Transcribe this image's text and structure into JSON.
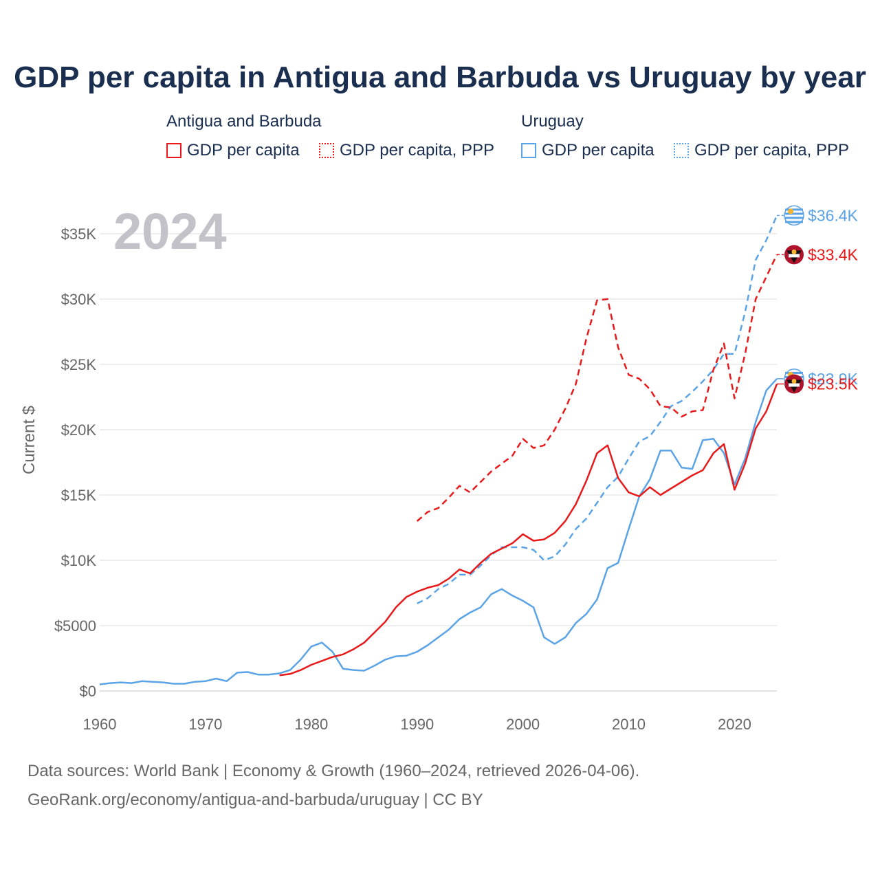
{
  "chart_data": {
    "type": "line",
    "title": "GDP per capita in Antigua and Barbuda vs Uruguay by year",
    "year_label": "2024",
    "ylabel": "Current $",
    "xlim": [
      1960,
      2024
    ],
    "ylim": [
      0,
      37000
    ],
    "x_ticks": [
      1960,
      1970,
      1980,
      1990,
      2000,
      2010,
      2020
    ],
    "y_ticks": [
      {
        "value": 0,
        "label": "$0"
      },
      {
        "value": 5000,
        "label": "$5000"
      },
      {
        "value": 10000,
        "label": "$10K"
      },
      {
        "value": 15000,
        "label": "$15K"
      },
      {
        "value": 20000,
        "label": "$20K"
      },
      {
        "value": 25000,
        "label": "$25K"
      },
      {
        "value": 30000,
        "label": "$30K"
      },
      {
        "value": 35000,
        "label": "$35K"
      }
    ],
    "legend": {
      "groups": [
        {
          "title": "Antigua and Barbuda",
          "items": [
            {
              "label": "GDP per capita",
              "style": "solid",
              "color": "#e8191a"
            },
            {
              "label": "GDP per capita, PPP",
              "style": "dotted",
              "color": "#e8191a"
            }
          ]
        },
        {
          "title": "Uruguay",
          "items": [
            {
              "label": "GDP per capita",
              "style": "solid",
              "color": "#5aa3e6"
            },
            {
              "label": "GDP per capita, PPP",
              "style": "dotted",
              "color": "#5aa3e6"
            }
          ]
        }
      ]
    },
    "series": [
      {
        "name": "Uruguay GDP per capita, PPP",
        "color": "#5aa3e6",
        "dash": true,
        "end_label": "$36.4K",
        "label_order": 0,
        "x": [
          1990,
          1991,
          1992,
          1993,
          1994,
          1995,
          1996,
          1997,
          1998,
          1999,
          2000,
          2001,
          2002,
          2003,
          2004,
          2005,
          2006,
          2007,
          2008,
          2009,
          2010,
          2011,
          2012,
          2013,
          2014,
          2015,
          2016,
          2017,
          2018,
          2019,
          2020,
          2021,
          2022,
          2023,
          2024
        ],
        "y": [
          6700,
          7100,
          7800,
          8200,
          8900,
          8900,
          9600,
          10400,
          11000,
          11000,
          11000,
          10800,
          10000,
          10300,
          11200,
          12400,
          13200,
          14400,
          15600,
          16400,
          17800,
          19100,
          19500,
          20600,
          21800,
          22200,
          22900,
          23700,
          24600,
          25800,
          25800,
          29000,
          33000,
          34500,
          36400
        ]
      },
      {
        "name": "Antigua and Barbuda GDP per capita, PPP",
        "color": "#e8191a",
        "dash": true,
        "end_label": "$33.4K",
        "label_order": 1,
        "x": [
          1990,
          1991,
          1992,
          1993,
          1994,
          1995,
          1996,
          1997,
          1998,
          1999,
          2000,
          2001,
          2002,
          2003,
          2004,
          2005,
          2006,
          2007,
          2008,
          2009,
          2010,
          2011,
          2012,
          2013,
          2014,
          2015,
          2016,
          2017,
          2018,
          2019,
          2020,
          2021,
          2022,
          2023,
          2024
        ],
        "y": [
          13000,
          13700,
          14000,
          14800,
          15700,
          15200,
          16000,
          16800,
          17400,
          18000,
          19300,
          18600,
          18800,
          20000,
          21600,
          23500,
          27000,
          29900,
          30000,
          26300,
          24200,
          23900,
          23100,
          21800,
          21700,
          21000,
          21400,
          21500,
          24600,
          26600,
          22400,
          25800,
          30000,
          31700,
          33400
        ]
      },
      {
        "name": "Uruguay GDP per capita",
        "color": "#5aa3e6",
        "dash": false,
        "end_label": "$23.9K",
        "label_order": 2,
        "x": [
          1960,
          1961,
          1962,
          1963,
          1964,
          1965,
          1966,
          1967,
          1968,
          1969,
          1970,
          1971,
          1972,
          1973,
          1974,
          1975,
          1976,
          1977,
          1978,
          1979,
          1980,
          1981,
          1982,
          1983,
          1984,
          1985,
          1986,
          1987,
          1988,
          1989,
          1990,
          1991,
          1992,
          1993,
          1994,
          1995,
          1996,
          1997,
          1998,
          1999,
          2000,
          2001,
          2002,
          2003,
          2004,
          2005,
          2006,
          2007,
          2008,
          2009,
          2010,
          2011,
          2012,
          2013,
          2014,
          2015,
          2016,
          2017,
          2018,
          2019,
          2020,
          2021,
          2022,
          2023,
          2024
        ],
        "y": [
          500,
          600,
          650,
          600,
          750,
          700,
          650,
          550,
          550,
          700,
          750,
          950,
          750,
          1400,
          1450,
          1250,
          1250,
          1350,
          1600,
          2400,
          3400,
          3700,
          3000,
          1700,
          1600,
          1550,
          1950,
          2400,
          2650,
          2700,
          3000,
          3500,
          4100,
          4700,
          5500,
          6000,
          6400,
          7400,
          7800,
          7300,
          6900,
          6400,
          4100,
          3600,
          4100,
          5200,
          5900,
          7000,
          9400,
          9800,
          12400,
          14900,
          16200,
          18400,
          18400,
          17100,
          17000,
          19200,
          19300,
          18200,
          15800,
          17800,
          20600,
          23000,
          23900
        ]
      },
      {
        "name": "Antigua and Barbuda GDP per capita",
        "color": "#e8191a",
        "dash": false,
        "end_label": "$23.5K",
        "label_order": 3,
        "x": [
          1977,
          1978,
          1979,
          1980,
          1981,
          1982,
          1983,
          1984,
          1985,
          1986,
          1987,
          1988,
          1989,
          1990,
          1991,
          1992,
          1993,
          1994,
          1995,
          1996,
          1997,
          1998,
          1999,
          2000,
          2001,
          2002,
          2003,
          2004,
          2005,
          2006,
          2007,
          2008,
          2009,
          2010,
          2011,
          2012,
          2013,
          2014,
          2015,
          2016,
          2017,
          2018,
          2019,
          2020,
          2021,
          2022,
          2023,
          2024
        ],
        "y": [
          1200,
          1300,
          1600,
          2000,
          2300,
          2600,
          2800,
          3200,
          3700,
          4500,
          5300,
          6400,
          7200,
          7600,
          7900,
          8100,
          8600,
          9300,
          9000,
          9800,
          10500,
          10900,
          11300,
          12000,
          11500,
          11600,
          12100,
          13000,
          14300,
          16100,
          18200,
          18800,
          16300,
          15200,
          14900,
          15600,
          15000,
          15500,
          16000,
          16500,
          16900,
          18200,
          18900,
          15400,
          17400,
          20100,
          21400,
          23500
        ]
      }
    ],
    "sources": [
      "Data sources: World Bank | Economy & Growth (1960–2024, retrieved 2026-04-06).",
      "GeoRank.org/economy/antigua-and-barbuda/uruguay | CC BY"
    ]
  }
}
